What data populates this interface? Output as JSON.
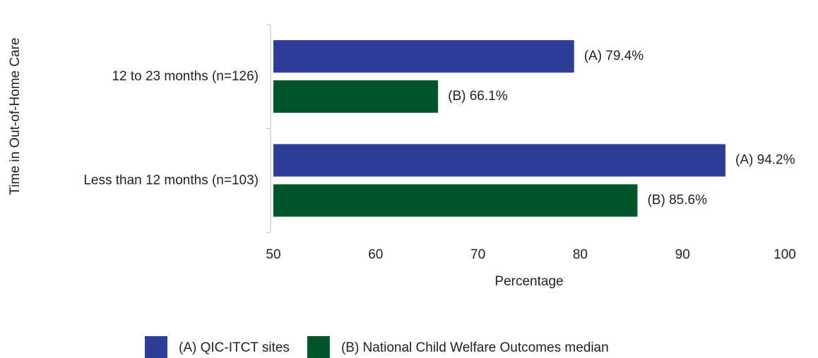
{
  "chart_data": {
    "type": "hbar",
    "y_label": "Time in Out-of-Home Care",
    "x_label": "Percentage",
    "categories": [
      "12 to 23 months (n=126)",
      "Less than 12 months (n=103)"
    ],
    "series": [
      {
        "name": "(A) QIC-ITCT sites",
        "color": "#2e3d98",
        "values": [
          79.4,
          94.2
        ],
        "value_labels": [
          "(A) 79.4%",
          "(A) 94.2%"
        ]
      },
      {
        "name": "(B) National Child Welfare Outcomes median",
        "color": "#00562b",
        "values": [
          66.1,
          85.6
        ],
        "value_labels": [
          "(B) 66.1%",
          "(B) 85.6%"
        ]
      }
    ],
    "xlim": [
      50,
      100
    ],
    "xticks": [
      50,
      60,
      70,
      80,
      90,
      100
    ],
    "grid": false,
    "legend": "bottom"
  }
}
